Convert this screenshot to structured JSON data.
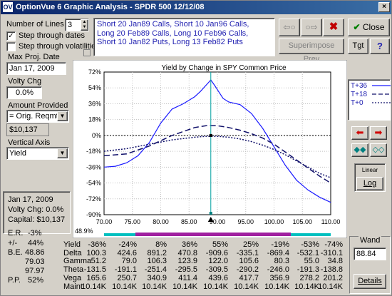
{
  "window": {
    "title": "OptionVue 6 Graphic Analysis - SPDR 500  12/12/08",
    "app_icon": "OV"
  },
  "controls": {
    "num_lines_label": "Number of Lines",
    "num_lines_value": "3",
    "step_dates_label": "Step through dates",
    "step_dates_checked": true,
    "step_vols_label": "Step through volatilities",
    "step_vols_checked": false,
    "max_proj_date_label": "Max Proj. Date",
    "max_proj_date_value": "Jan 17, 2009",
    "volty_chg_label": "Volty Chg",
    "volty_chg_value": "0.0%",
    "amount_provided_label": "Amount Provided",
    "amount_provided_select": "= Orig. Reqmt.",
    "amount_provided_value": "$10,137",
    "vertical_axis_label": "Vertical Axis",
    "vertical_axis_select": "Yield"
  },
  "strategy_text": [
    "Short 20 Jan89 Calls, Short 10 Jan96 Calls,",
    "Long 20 Feb89 Calls, Long 10 Feb96 Calls,",
    "Short 10 Jan82 Puts, Long 13 Feb82 Puts"
  ],
  "buttons": {
    "back": "⇦○",
    "forward": "○⇨",
    "delete": "✖",
    "close": "Close",
    "close_check": "✔",
    "superimpose": "Superimpose Prev",
    "tgt": "Tgt",
    "help": "?",
    "linear": "Linear",
    "log": "Log",
    "details": "Details"
  },
  "legend": [
    {
      "label": "T+36",
      "style": "solid"
    },
    {
      "label": "T+18",
      "style": "dashed"
    },
    {
      "label": "T+0",
      "style": "dotted"
    }
  ],
  "chart_data": {
    "type": "line",
    "title": "Yield by Change in SPY Common Price",
    "xlabel": "",
    "ylabel": "",
    "xlim": [
      70,
      110
    ],
    "ylim": [
      -90,
      72
    ],
    "x_ticks": [
      "70.00",
      "75.00",
      "80.00",
      "85.00",
      "90.00",
      "95.00",
      "100.00",
      "105.00",
      "110.00"
    ],
    "y_ticks": [
      "72%",
      "54%",
      "36%",
      "18%",
      "0%",
      "-18%",
      "-36%",
      "-54%",
      "-72%",
      "-90%"
    ],
    "current_price": 88.84,
    "corner_label": "48.9%",
    "series": [
      {
        "name": "T+36",
        "style": "solid",
        "color": "#1a1aff",
        "x": [
          70,
          72,
          74,
          76,
          78,
          80,
          82,
          84,
          86,
          87,
          88,
          88.84,
          89.5,
          90,
          91,
          92,
          94,
          96,
          98,
          100,
          102,
          104,
          106,
          108,
          110
        ],
        "y": [
          -36,
          -35,
          -31,
          -23,
          -8,
          14,
          30,
          36,
          44,
          50,
          57,
          63,
          57,
          52,
          42,
          38,
          35,
          25,
          8,
          -13,
          -34,
          -51,
          -62,
          -70,
          -76
        ]
      },
      {
        "name": "T+18",
        "style": "dashed",
        "color": "#10106a",
        "x": [
          70,
          74,
          78,
          82,
          86,
          88,
          90,
          92,
          94,
          96,
          98,
          100,
          102,
          104,
          106,
          108,
          110
        ],
        "y": [
          -23,
          -21,
          -12,
          0,
          9,
          11,
          11,
          9,
          6,
          2,
          -3,
          -10,
          -19,
          -28,
          -37,
          -46,
          -54
        ]
      },
      {
        "name": "T+0",
        "style": "dotted",
        "color": "#10106a",
        "x": [
          70,
          74,
          78,
          82,
          86,
          88,
          90,
          92,
          94,
          96,
          98,
          100,
          102,
          104,
          106,
          108,
          110
        ],
        "y": [
          -18,
          -15,
          -10,
          -5,
          -2,
          -1,
          -1,
          -2,
          -4,
          -7,
          -11,
          -16,
          -22,
          -29,
          -36,
          -43,
          -48
        ]
      }
    ]
  },
  "summary": {
    "date": "Jan 17, 2009",
    "volty": "Volty Chg:  0.0%",
    "capital": "Capital:  $10,137",
    "er_label": "E.R.",
    "er_value": "-3%",
    "pct_label": "+/-",
    "pct_value": "44%",
    "be_label": "B.E.",
    "be_values": [
      "48.86",
      "79.03",
      "97.97"
    ],
    "pp_label": "P.P.",
    "pp_value": "52%"
  },
  "greeks": {
    "rows": [
      {
        "label": "Yield",
        "values": [
          "-36%",
          "-24%",
          "8%",
          "36%",
          "55%",
          "25%",
          "-19%",
          "-53%",
          "-74%"
        ]
      },
      {
        "label": "Delta",
        "values": [
          "100.3",
          "424.6",
          "891.2",
          "470.8",
          "-909.6",
          "-335.1",
          "-869.4",
          "-532.1",
          "-310.1"
        ]
      },
      {
        "label": "Gamma",
        "values": [
          "51.2",
          "79.0",
          "106.3",
          "123.9",
          "122.0",
          "105.6",
          "80.3",
          "55.0",
          "34.8"
        ]
      },
      {
        "label": "Theta",
        "values": [
          "-131.5",
          "-191.1",
          "-251.4",
          "-295.5",
          "-309.5",
          "-290.2",
          "-246.0",
          "-191.3",
          "-138.8"
        ]
      },
      {
        "label": "Vega",
        "values": [
          "165.6",
          "250.7",
          "340.9",
          "411.4",
          "439.6",
          "417.7",
          "356.9",
          "278.2",
          "201.2"
        ]
      },
      {
        "label": "Maint",
        "values": [
          "10.14K",
          "10.14K",
          "10.14K",
          "10.14K",
          "10.14K",
          "10.14K",
          "10.14K",
          "10.14K",
          "10.14K"
        ]
      }
    ]
  },
  "wand": {
    "label": "Wand",
    "value": "88.84"
  },
  "colors": {
    "title_bar": "#0a246a",
    "window_bg": "#d4d0c8",
    "strategy_text": "#1f1fb0",
    "cursor_line": "#00a0a0",
    "range_bar": "#a020a0",
    "range_bar_outer": "#00c0c0",
    "delete_red": "#c00000",
    "arrow_red": "#d00000",
    "arrow_teal": "#008080"
  }
}
